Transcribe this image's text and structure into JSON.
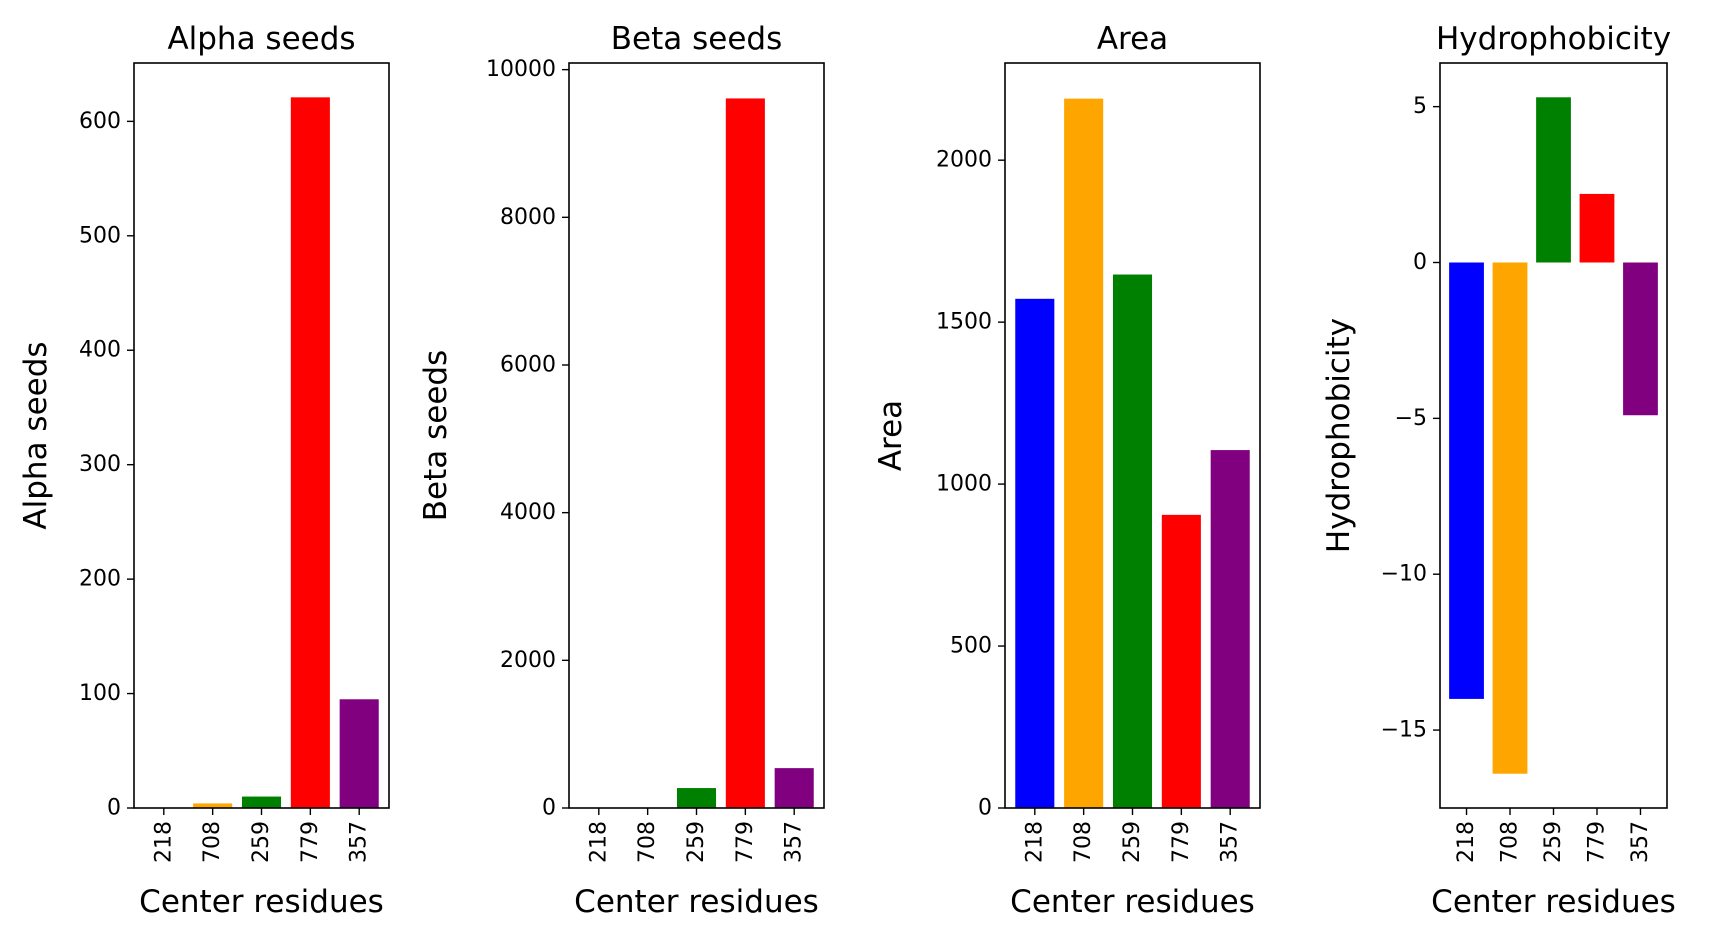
{
  "figure": {
    "background": "#ffffff"
  },
  "chart_data": [
    {
      "type": "bar",
      "title": "Alpha seeds",
      "xlabel": "Center residues",
      "ylabel": "Alpha seeds",
      "categories": [
        "218",
        "708",
        "259",
        "779",
        "357"
      ],
      "values": [
        0,
        4,
        10,
        621,
        95
      ],
      "colors": [
        "#0000ff",
        "#ffa500",
        "#008000",
        "#ff0000",
        "#800080"
      ],
      "ylim": [
        0,
        651
      ],
      "yticks": [
        0,
        100,
        200,
        300,
        400,
        500,
        600
      ],
      "ytick_labels": [
        "0",
        "100",
        "200",
        "300",
        "400",
        "500",
        "600"
      ]
    },
    {
      "type": "bar",
      "title": "Beta seeds",
      "xlabel": "Center residues",
      "ylabel": "Beta seeds",
      "categories": [
        "218",
        "708",
        "259",
        "779",
        "357"
      ],
      "values": [
        0,
        0,
        270,
        9610,
        540
      ],
      "colors": [
        "#0000ff",
        "#ffa500",
        "#008000",
        "#ff0000",
        "#800080"
      ],
      "ylim": [
        0,
        10090
      ],
      "yticks": [
        0,
        2000,
        4000,
        6000,
        8000,
        10000
      ],
      "ytick_labels": [
        "0",
        "2000",
        "4000",
        "6000",
        "8000",
        "10000"
      ]
    },
    {
      "type": "bar",
      "title": "Area",
      "xlabel": "Center residues",
      "ylabel": "Area",
      "categories": [
        "218",
        "708",
        "259",
        "779",
        "357"
      ],
      "values": [
        1572,
        2190,
        1647,
        905,
        1105
      ],
      "colors": [
        "#0000ff",
        "#ffa500",
        "#008000",
        "#ff0000",
        "#800080"
      ],
      "ylim": [
        0,
        2300
      ],
      "yticks": [
        0,
        500,
        1000,
        1500,
        2000
      ],
      "ytick_labels": [
        "0",
        "500",
        "1000",
        "1500",
        "2000"
      ]
    },
    {
      "type": "bar",
      "title": "Hydrophobicity",
      "xlabel": "Center residues",
      "ylabel": "Hydrophobicity",
      "categories": [
        "218",
        "708",
        "259",
        "779",
        "357"
      ],
      "values": [
        -14.0,
        -16.4,
        5.3,
        2.2,
        -4.9
      ],
      "colors": [
        "#0000ff",
        "#ffa500",
        "#008000",
        "#ff0000",
        "#800080"
      ],
      "ylim": [
        -17.5,
        6.4
      ],
      "yticks": [
        -15,
        -10,
        -5,
        0,
        5
      ],
      "ytick_labels": [
        "−15",
        "−10",
        "−5",
        "0",
        "5"
      ]
    }
  ]
}
